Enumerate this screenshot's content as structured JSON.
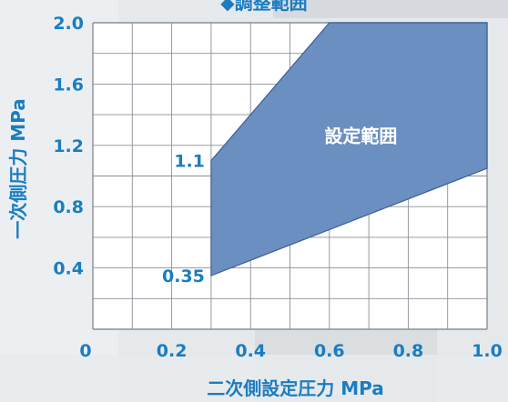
{
  "chart_data": {
    "type": "area",
    "title": "◆調整範囲",
    "xlabel": "二次側設定圧力 MPa",
    "ylabel": "一次側圧力 MPa",
    "xlim": [
      0,
      1.0
    ],
    "ylim": [
      0,
      2.0
    ],
    "x_ticks": [
      "0.2",
      "0.4",
      "0.6",
      "0.8",
      "1.0"
    ],
    "y_ticks": [
      "0.4",
      "0.8",
      "1.2",
      "1.6",
      "2.0"
    ],
    "origin_label": "0",
    "grid": true,
    "region": {
      "name": "設定範囲",
      "color": "#6b8fc0",
      "points": [
        {
          "x": 0.3,
          "y": 0.35
        },
        {
          "x": 1.0,
          "y": 1.05
        },
        {
          "x": 1.0,
          "y": 2.0
        },
        {
          "x": 0.6,
          "y": 2.0
        },
        {
          "x": 0.3,
          "y": 1.1
        }
      ]
    },
    "annotations": [
      "1.1",
      "0.35"
    ],
    "colors": {
      "text": "#1a7dc0",
      "grid": "#8a8f96",
      "fill": "#6b8fc0",
      "edge": "#3c5f95"
    }
  }
}
